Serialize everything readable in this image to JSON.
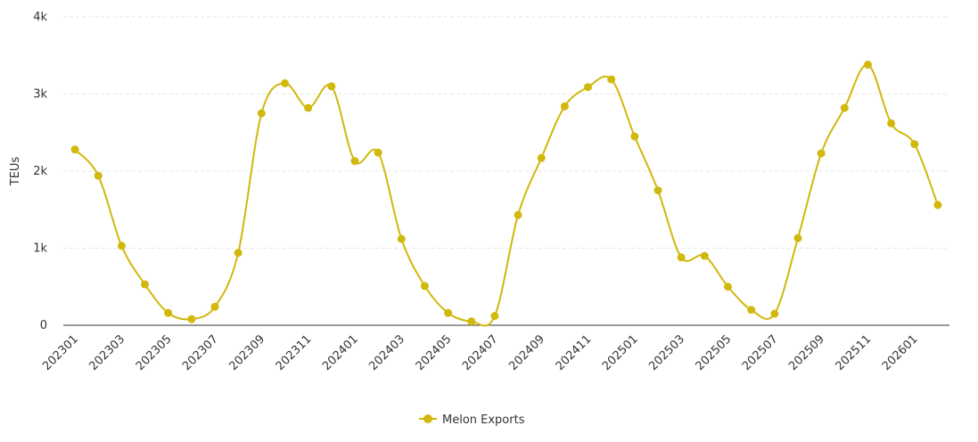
{
  "chart_data": {
    "type": "line",
    "y_label": "TEUs",
    "categories": [
      "202301",
      null,
      "202303",
      null,
      "202305",
      null,
      "202307",
      null,
      "202309",
      null,
      "202311",
      null,
      "202401",
      null,
      "202403",
      null,
      "202405",
      null,
      "202407",
      null,
      "202409",
      null,
      "202411",
      null,
      "202501",
      null,
      "202503",
      null,
      "202505",
      null,
      "202507",
      null,
      "202509",
      null,
      "202511",
      null,
      "202601",
      null
    ],
    "series": [
      {
        "name": "Melon Exports",
        "color": "#d1b80c",
        "values": [
          2280,
          1940,
          1030,
          530,
          160,
          80,
          240,
          940,
          2750,
          3140,
          2820,
          3100,
          2130,
          2240,
          1120,
          510,
          160,
          50,
          120,
          1430,
          2170,
          2840,
          3090,
          3190,
          2450,
          1750,
          880,
          900,
          500,
          200,
          150,
          1130,
          2230,
          2820,
          3380,
          2620,
          2350,
          1560
        ]
      }
    ],
    "ylim": [
      0,
      4000
    ],
    "yticks": [
      0,
      {
        "value": 1000,
        "label": "1k"
      },
      {
        "value": 2000,
        "label": "2k"
      },
      {
        "value": 3000,
        "label": "3k"
      },
      {
        "value": 4000,
        "label": "4k"
      }
    ],
    "grid": true,
    "legend": "bottom"
  }
}
